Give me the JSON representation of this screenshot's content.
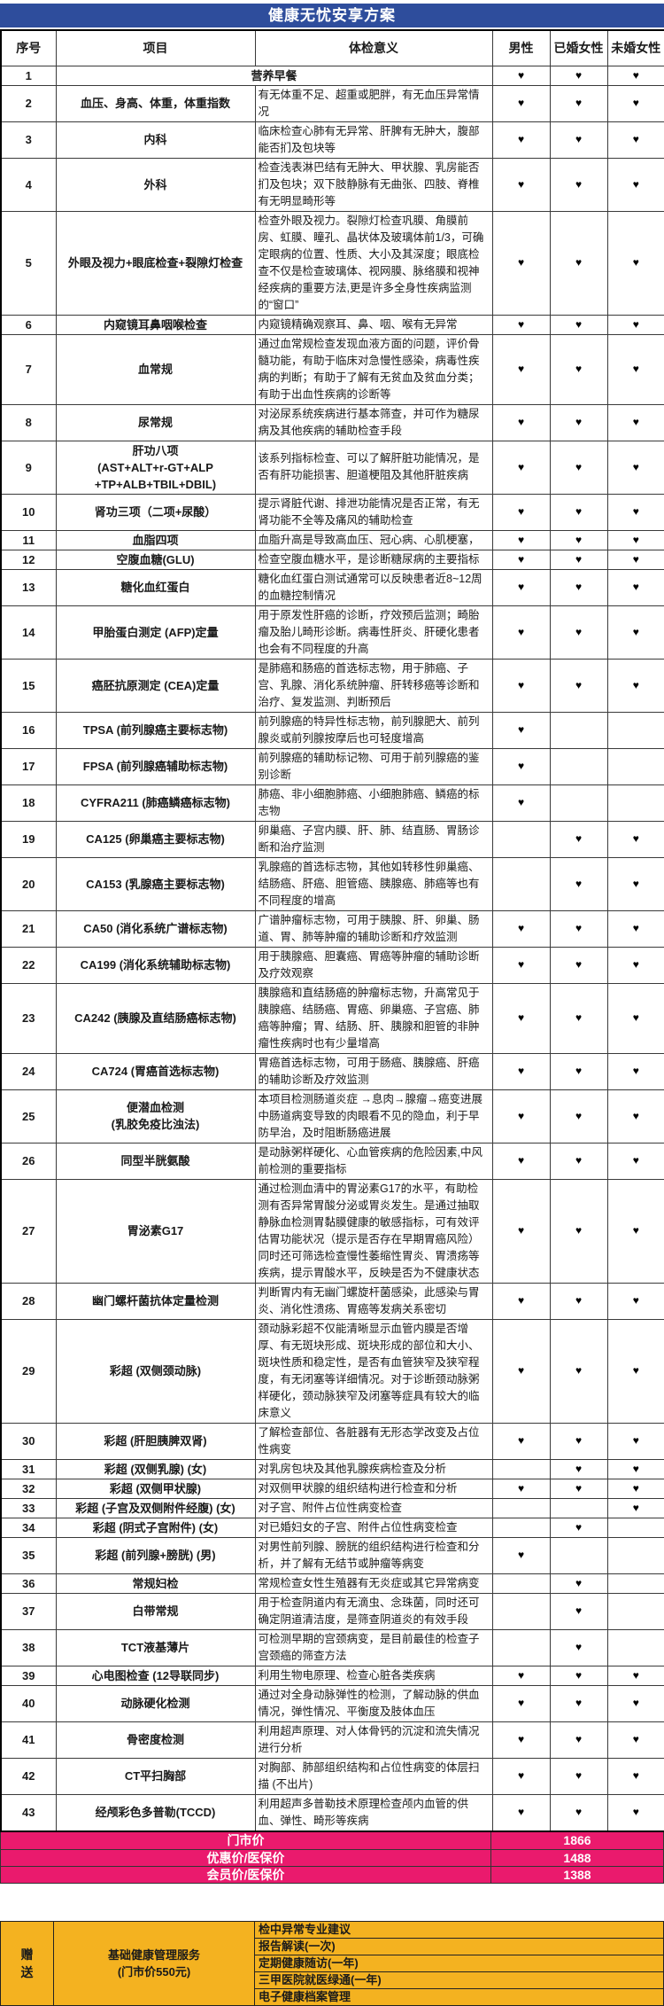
{
  "title": "健康无忧安享方案",
  "heart": "♥",
  "colors": {
    "header_blue": "#2E4D9C",
    "price_pink": "#EA1A6D",
    "gift_orange": "#F4B220",
    "heart_black": "#000000"
  },
  "columns": {
    "index": "序号",
    "item": "项目",
    "meaning": "体检意义",
    "male": "男性",
    "married_female": "已婚女性",
    "unmarried_female": "未婚女性"
  },
  "rows": [
    {
      "no": "1",
      "item": "营养早餐",
      "meaning": "",
      "merged": true,
      "m": true,
      "w1": true,
      "w2": true
    },
    {
      "no": "2",
      "item": "血压、身高、体重，体重指数",
      "meaning": "有无体重不足、超重或肥胖，有无血压异常情况",
      "m": true,
      "w1": true,
      "w2": true
    },
    {
      "no": "3",
      "item": "内科",
      "meaning": "临床检查心肺有无异常、肝脾有无肿大，腹部能否扪及包块等",
      "m": true,
      "w1": true,
      "w2": true
    },
    {
      "no": "4",
      "item": "外科",
      "meaning": "检查浅表淋巴结有无肿大、甲状腺、乳房能否扪及包块；双下肢静脉有无曲张、四肢、脊椎有无明显畸形等",
      "m": true,
      "w1": true,
      "w2": true
    },
    {
      "no": "5",
      "item": "外眼及视力+眼底检查+裂隙灯检查",
      "meaning": "检查外眼及视力。裂隙灯检查巩膜、角膜前房、虹膜、瞳孔、晶状体及玻璃体前1/3，可确定眼病的位置、性质、大小及其深度；眼底检查不仅是检查玻璃体、视网膜、脉络膜和视神经疾病的重要方法,更是许多全身性疾病监测的“窗口”",
      "m": true,
      "w1": true,
      "w2": true
    },
    {
      "no": "6",
      "item": "内窥镜耳鼻咽喉检查",
      "meaning": "内窥镜精确观察耳、鼻、咽、喉有无异常",
      "m": true,
      "w1": true,
      "w2": true
    },
    {
      "no": "7",
      "item": "血常规",
      "meaning": "通过血常规检查发现血液方面的问题，评价骨髓功能，有助于临床对急慢性感染，病毒性疾病的判断；有助于了解有无贫血及贫血分类；有助于出血性疾病的诊断等",
      "m": true,
      "w1": true,
      "w2": true
    },
    {
      "no": "8",
      "item": "尿常规",
      "meaning": "对泌尿系统疾病进行基本筛查，并可作为糖尿病及其他疾病的辅助检查手段",
      "m": true,
      "w1": true,
      "w2": true
    },
    {
      "no": "9",
      "item": "肝功八项\n(AST+ALT+r-GT+ALP\n+TP+ALB+TBIL+DBIL)",
      "meaning": "该系列指标检查、可以了解肝脏功能情况，是否有肝功能损害、胆道梗阻及其他肝脏疾病",
      "m": true,
      "w1": true,
      "w2": true
    },
    {
      "no": "10",
      "item": "肾功三项（二项+尿酸）",
      "meaning": "提示肾脏代谢、排泄功能情况是否正常，有无肾功能不全等及痛风的辅助检查",
      "m": true,
      "w1": true,
      "w2": true
    },
    {
      "no": "11",
      "item": "血脂四项",
      "meaning": "血脂升高是导致高血压、冠心病、心肌梗塞，",
      "m": true,
      "w1": true,
      "w2": true
    },
    {
      "no": "12",
      "item": "空腹血糖(GLU)",
      "meaning": "检查空腹血糖水平，是诊断糖尿病的主要指标",
      "m": true,
      "w1": true,
      "w2": true
    },
    {
      "no": "13",
      "item": "糖化血红蛋白",
      "meaning": "糖化血红蛋白测试通常可以反映患者近8~12周的血糖控制情况",
      "m": true,
      "w1": true,
      "w2": true
    },
    {
      "no": "14",
      "item": "甲胎蛋白测定 (AFP)定量",
      "meaning": "用于原发性肝癌的诊断，疗效预后监测；畸胎瘤及胎儿畸形诊断。病毒性肝炎、肝硬化患者也会有不同程度的升高",
      "m": true,
      "w1": true,
      "w2": true
    },
    {
      "no": "15",
      "item": "癌胚抗原测定 (CEA)定量",
      "meaning": "是肺癌和肠癌的首选标志物，用于肺癌、子宫、乳腺、消化系统肿瘤、肝转移癌等诊断和治疗、复发监测、判断预后",
      "m": true,
      "w1": true,
      "w2": true
    },
    {
      "no": "16",
      "item": "TPSA (前列腺癌主要标志物)",
      "meaning": "前列腺癌的特异性标志物，前列腺肥大、前列腺炎或前列腺按摩后也可轻度增高",
      "m": true,
      "w1": false,
      "w2": false
    },
    {
      "no": "17",
      "item": "FPSA (前列腺癌辅助标志物)",
      "meaning": "前列腺癌的辅助标记物、可用于前列腺癌的鉴别诊断",
      "m": true,
      "w1": false,
      "w2": false
    },
    {
      "no": "18",
      "item": "CYFRA211 (肺癌鳞癌标志物)",
      "meaning": "肺癌、非小细胞肺癌、小细胞肺癌、鳞癌的标志物",
      "m": true,
      "w1": false,
      "w2": false
    },
    {
      "no": "19",
      "item": "CA125 (卵巢癌主要标志物)",
      "meaning": "卵巢癌、子宫内膜、肝、肺、结直肠、胃肠诊断和治疗监测",
      "m": false,
      "w1": true,
      "w2": true
    },
    {
      "no": "20",
      "item": "CA153 (乳腺癌主要标志物)",
      "meaning": "乳腺癌的首选标志物，其他如转移性卵巢癌、结肠癌、肝癌、胆管癌、胰腺癌、肺癌等也有不同程度的增高",
      "m": false,
      "w1": true,
      "w2": true
    },
    {
      "no": "21",
      "item": "CA50 (消化系统广谱标志物)",
      "meaning": "广谱肿瘤标志物，可用于胰腺、肝、卵巢、肠道、胃、肺等肿瘤的辅助诊断和疗效监测",
      "m": true,
      "w1": true,
      "w2": true
    },
    {
      "no": "22",
      "item": "CA199 (消化系统辅助标志物)",
      "meaning": "用于胰腺癌、胆囊癌、胃癌等肿瘤的辅助诊断及疗效观察",
      "m": true,
      "w1": true,
      "w2": true
    },
    {
      "no": "23",
      "item": "CA242 (胰腺及直结肠癌标志物)",
      "meaning": "胰腺癌和直结肠癌的肿瘤标志物，升高常见于胰腺癌、结肠癌、胃癌、卵巢癌、子宫癌、肺癌等肿瘤；胃、结肠、肝、胰腺和胆管的非肿瘤性疾病时也有少量增高",
      "m": true,
      "w1": true,
      "w2": true
    },
    {
      "no": "24",
      "item": "CA724 (胃癌首选标志物)",
      "meaning": "胃癌首选标志物，可用于肠癌、胰腺癌、肝癌的辅助诊断及疗效监测",
      "m": true,
      "w1": true,
      "w2": true
    },
    {
      "no": "25",
      "item": "便潜血检测\n(乳胶免疫比浊法)",
      "meaning": "本项目检测肠道炎症 →息肉→腺瘤→癌变进展中肠道病变导致的肉眼看不见的隐血，利于早防早治，及时阻断肠癌进展",
      "m": true,
      "w1": true,
      "w2": true
    },
    {
      "no": "26",
      "item": "同型半胱氨酸",
      "meaning": "是动脉粥样硬化、心血管疾病的危险因素,中风前检测的重要指标",
      "m": true,
      "w1": true,
      "w2": true
    },
    {
      "no": "27",
      "item": "胃泌素G17",
      "meaning": "通过检测血清中的胃泌素G17的水平，有助检测有否异常胃酸分泌或胃炎发生。是通过抽取静脉血检测胃黏膜健康的敏感指标，可有效评估胃功能状况（提示是否存在早期胃癌风险）同时还可筛选检查慢性萎缩性胃炎、胃溃疡等疾病，提示胃酸水平，反映是否为不健康状态",
      "m": true,
      "w1": true,
      "w2": true
    },
    {
      "no": "28",
      "item": "幽门螺杆菌抗体定量检测",
      "meaning": "判断胃内有无幽门螺旋杆菌感染，此感染与胃炎、消化性溃疡、胃癌等发病关系密切",
      "m": true,
      "w1": true,
      "w2": true
    },
    {
      "no": "29",
      "item": "彩超 (双侧颈动脉)",
      "meaning": "颈动脉彩超不仅能清晰显示血管内膜是否增厚、有无斑块形成、斑块形成的部位和大小、斑块性质和稳定性，是否有血管狭窄及狭窄程度，有无闭塞等详细情况。对于诊断颈动脉粥样硬化，颈动脉狭窄及闭塞等症具有较大的临床意义",
      "m": true,
      "w1": true,
      "w2": true
    },
    {
      "no": "30",
      "item": "彩超 (肝胆胰脾双肾)",
      "meaning": "了解检查部位、各脏器有无形态学改变及占位性病变",
      "m": true,
      "w1": true,
      "w2": true
    },
    {
      "no": "31",
      "item": "彩超 (双侧乳腺) (女)",
      "meaning": "对乳房包块及其他乳腺疾病检查及分析",
      "m": false,
      "w1": true,
      "w2": true
    },
    {
      "no": "32",
      "item": "彩超 (双侧甲状腺)",
      "meaning": "对双侧甲状腺的组织结构进行检查和分析",
      "m": true,
      "w1": true,
      "w2": true
    },
    {
      "no": "33",
      "item": "彩超 (子宫及双侧附件经腹) (女)",
      "meaning": "对子宫、附件占位性病变检查",
      "m": false,
      "w1": false,
      "w2": true
    },
    {
      "no": "34",
      "item": "彩超 (阴式子宫附件) (女)",
      "meaning": "对已婚妇女的子宫、附件占位性病变检查",
      "m": false,
      "w1": true,
      "w2": false
    },
    {
      "no": "35",
      "item": "彩超 (前列腺+膀胱) (男)",
      "meaning": "对男性前列腺、膀胱的组织结构进行检查和分析，并了解有无结节或肿瘤等病变",
      "m": true,
      "w1": false,
      "w2": false
    },
    {
      "no": "36",
      "item": "常规妇检",
      "meaning": "常规检查女性生殖器有无炎症或其它异常病变",
      "m": false,
      "w1": true,
      "w2": false
    },
    {
      "no": "37",
      "item": "白带常规",
      "meaning": "用于检查阴道内有无滴虫、念珠菌，同时还可确定阴道清洁度，是筛查阴道炎的有效手段",
      "m": false,
      "w1": true,
      "w2": false
    },
    {
      "no": "38",
      "item": "TCT液基薄片",
      "meaning": "可检测早期的宫颈病变，是目前最佳的检查子宫颈癌的筛查方法",
      "m": false,
      "w1": true,
      "w2": false
    },
    {
      "no": "39",
      "item": "心电图检查 (12导联同步)",
      "meaning": "利用生物电原理、检查心脏各类疾病",
      "m": true,
      "w1": true,
      "w2": true
    },
    {
      "no": "40",
      "item": "动脉硬化检测",
      "meaning": "通过对全身动脉弹性的检测，了解动脉的供血情况，弹性情况、平衡度及肢体血压",
      "m": true,
      "w1": true,
      "w2": true
    },
    {
      "no": "41",
      "item": "骨密度检测",
      "meaning": "利用超声原理、对人体骨钙的沉淀和流失情况进行分析",
      "m": true,
      "w1": true,
      "w2": true
    },
    {
      "no": "42",
      "item": "CT平扫胸部",
      "meaning": "对胸部、肺部组织结构和占位性病变的体层扫描 (不出片)",
      "m": true,
      "w1": true,
      "w2": true
    },
    {
      "no": "43",
      "item": "经颅彩色多普勒(TCCD)",
      "meaning": "利用超声多普勒技术原理检查颅内血管的供血、弹性、畸形等疾病",
      "m": true,
      "w1": true,
      "w2": true
    }
  ],
  "prices": [
    {
      "label": "门市价",
      "value": "1866"
    },
    {
      "label": "优惠价/医保价",
      "value": "1488"
    },
    {
      "label": "会员价/医保价",
      "value": "1388"
    }
  ],
  "gift": {
    "tag": "赠送",
    "package_name": "基础健康管理服务",
    "package_note": "(门市价550元)",
    "items": [
      "检中异常专业建议",
      "报告解读(一次)",
      "定期健康随访(一年)",
      "三甲医院就医绿通(一年)",
      "电子健康档案管理"
    ]
  }
}
